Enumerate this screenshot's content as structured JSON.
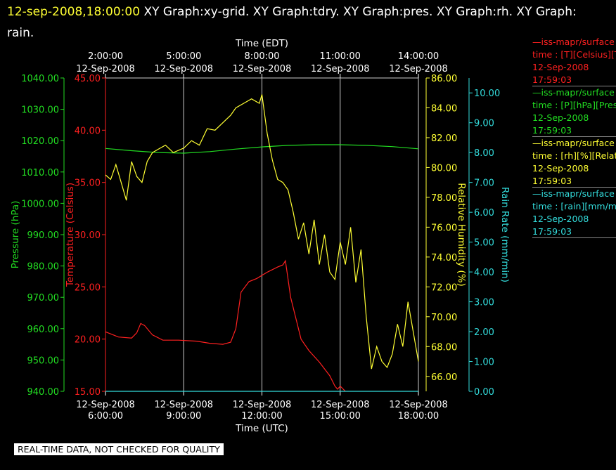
{
  "header": {
    "timestamp": "12-sep-2008,18:00:00",
    "graphs": "XY Graph:xy-grid.  XY Graph:tdry.  XY Graph:pres.  XY Graph:rh.  XY Graph:",
    "graphs_line2": "rain."
  },
  "legend": [
    {
      "line1": "—iss-mapr/surface",
      "line2": "time : [T][Celsius][T",
      "line3": "12-Sep-2008",
      "line4": "17:59:03",
      "color": "#ff2020"
    },
    {
      "line1": "—iss-mapr/surface",
      "line2": "time : [P][hPa][Pres",
      "line3": "12-Sep-2008",
      "line4": "17:59:03",
      "color": "#22dd22"
    },
    {
      "line1": "—iss-mapr/surface",
      "line2": "time : [rh][%][Relati",
      "line3": "12-Sep-2008",
      "line4": "17:59:03",
      "color": "#ffff33"
    },
    {
      "line1": "—iss-mapr/surface",
      "line2": "time : [rain][mm/min",
      "line3": "12-Sep-2008",
      "line4": "17:59:03",
      "color": "#33dddd"
    }
  ],
  "qc_note": "REAL-TIME DATA, NOT CHECKED FOR QUALITY",
  "chart_data": {
    "type": "line",
    "top_axis_title": "Time (EDT)",
    "bottom_axis_title": "Time (UTC)",
    "x_range_utc_hours": [
      6,
      18
    ],
    "x_ticks": [
      {
        "x": 6,
        "utc_date": "12-Sep-2008",
        "utc_time": "6:00:00",
        "edt_date": "12-Sep-2008",
        "edt_time": "2:00:00"
      },
      {
        "x": 9,
        "utc_date": "12-Sep-2008",
        "utc_time": "9:00:00",
        "edt_date": "12-Sep-2008",
        "edt_time": "5:00:00"
      },
      {
        "x": 12,
        "utc_date": "12-Sep-2008",
        "utc_time": "12:00:00",
        "edt_date": "12-Sep-2008",
        "edt_time": "8:00:00"
      },
      {
        "x": 15,
        "utc_date": "12-Sep-2008",
        "utc_time": "15:00:00",
        "edt_date": "12-Sep-2008",
        "edt_time": "11:00:00"
      },
      {
        "x": 18,
        "utc_date": "12-Sep-2008",
        "utc_time": "18:00:00",
        "edt_date": "12-Sep-2008",
        "edt_time": "14:00:00"
      }
    ],
    "grid": "vertical",
    "axes": [
      {
        "id": "pres",
        "label": "Pressure (hPa)",
        "color": "#22dd22",
        "range": [
          940,
          1040
        ],
        "ticks": [
          "1040.00",
          "1030.00",
          "1020.00",
          "1010.00",
          "1000.00",
          "990.00",
          "980.00",
          "970.00",
          "960.00",
          "950.00",
          "940.00"
        ]
      },
      {
        "id": "temp",
        "label": "Temperature (Celsius)",
        "color": "#ff2020",
        "range": [
          15,
          45
        ],
        "ticks": [
          "45.00",
          "40.00",
          "35.00",
          "30.00",
          "25.00",
          "20.00",
          "15.00"
        ]
      },
      {
        "id": "rh",
        "label": "Relative Humidity (%)",
        "color": "#ffff33",
        "range": [
          65,
          86
        ],
        "ticks": [
          "86.00",
          "84.00",
          "82.00",
          "80.00",
          "78.00",
          "76.00",
          "74.00",
          "72.00",
          "70.00",
          "68.00",
          "66.00"
        ]
      },
      {
        "id": "rain",
        "label": "Rain Rate (mm/min)",
        "color": "#33dddd",
        "range": [
          0,
          10.5
        ],
        "ticks": [
          "10.00",
          "9.00",
          "8.00",
          "7.00",
          "6.00",
          "5.00",
          "4.00",
          "3.00",
          "2.00",
          "1.00",
          "0.00"
        ]
      }
    ],
    "series": [
      {
        "axis": "temp",
        "color": "#ff2020",
        "x": [
          6.0,
          6.5,
          7.0,
          7.2,
          7.35,
          7.5,
          7.8,
          8.2,
          8.8,
          9.5,
          10.0,
          10.5,
          10.8,
          11.0,
          11.2,
          11.5,
          11.8,
          12.2,
          12.6,
          12.8,
          12.9,
          13.1,
          13.3,
          13.5,
          13.8,
          14.2,
          14.6,
          14.8,
          14.9,
          15.0,
          15.2
        ],
        "values": [
          20.7,
          20.2,
          20.1,
          20.6,
          21.5,
          21.3,
          20.4,
          19.9,
          19.9,
          19.8,
          19.6,
          19.5,
          19.7,
          21.0,
          24.5,
          25.5,
          25.8,
          26.4,
          26.9,
          27.1,
          27.5,
          24.0,
          22.0,
          20.0,
          18.9,
          17.8,
          16.5,
          15.5,
          15.2,
          15.5,
          15.0
        ]
      },
      {
        "axis": "pres",
        "color": "#22dd22",
        "x": [
          6.0,
          7.0,
          8.0,
          9.0,
          10.0,
          11.0,
          12.0,
          13.0,
          14.0,
          15.0,
          16.0,
          17.0,
          18.0
        ],
        "values": [
          1017.5,
          1016.8,
          1016.2,
          1016.0,
          1016.5,
          1017.3,
          1018.0,
          1018.5,
          1018.7,
          1018.7,
          1018.5,
          1018.1,
          1017.4
        ]
      },
      {
        "axis": "rh",
        "color": "#ffff33",
        "x": [
          6.0,
          6.2,
          6.4,
          6.6,
          6.8,
          7.0,
          7.2,
          7.4,
          7.6,
          7.8,
          8.0,
          8.3,
          8.6,
          9.0,
          9.3,
          9.6,
          9.9,
          10.2,
          10.5,
          10.8,
          11.0,
          11.3,
          11.6,
          11.9,
          12.0,
          12.2,
          12.4,
          12.6,
          12.8,
          13.0,
          13.2,
          13.4,
          13.6,
          13.8,
          14.0,
          14.2,
          14.4,
          14.6,
          14.8,
          15.0,
          15.2,
          15.4,
          15.6,
          15.8,
          16.0,
          16.2,
          16.4,
          16.6,
          16.8,
          17.0,
          17.2,
          17.4,
          17.6,
          17.8,
          18.0
        ],
        "values": [
          79.5,
          79.2,
          80.2,
          79.0,
          77.8,
          80.4,
          79.4,
          79.0,
          80.4,
          81.0,
          81.2,
          81.5,
          81.0,
          81.3,
          81.8,
          81.5,
          82.6,
          82.5,
          83.0,
          83.5,
          84.0,
          84.3,
          84.6,
          84.3,
          84.9,
          82.3,
          80.5,
          79.2,
          79.0,
          78.5,
          77.0,
          75.2,
          76.3,
          74.2,
          76.5,
          73.5,
          75.5,
          73.0,
          72.5,
          75.0,
          73.5,
          76.0,
          72.3,
          74.5,
          70.0,
          66.5,
          68.0,
          67.0,
          66.6,
          67.5,
          69.5,
          68.0,
          71.0,
          69.0,
          67.0
        ]
      },
      {
        "axis": "rain",
        "color": "#33dddd",
        "x": [
          6.0,
          18.0
        ],
        "values": [
          0.0,
          0.0
        ]
      }
    ]
  }
}
